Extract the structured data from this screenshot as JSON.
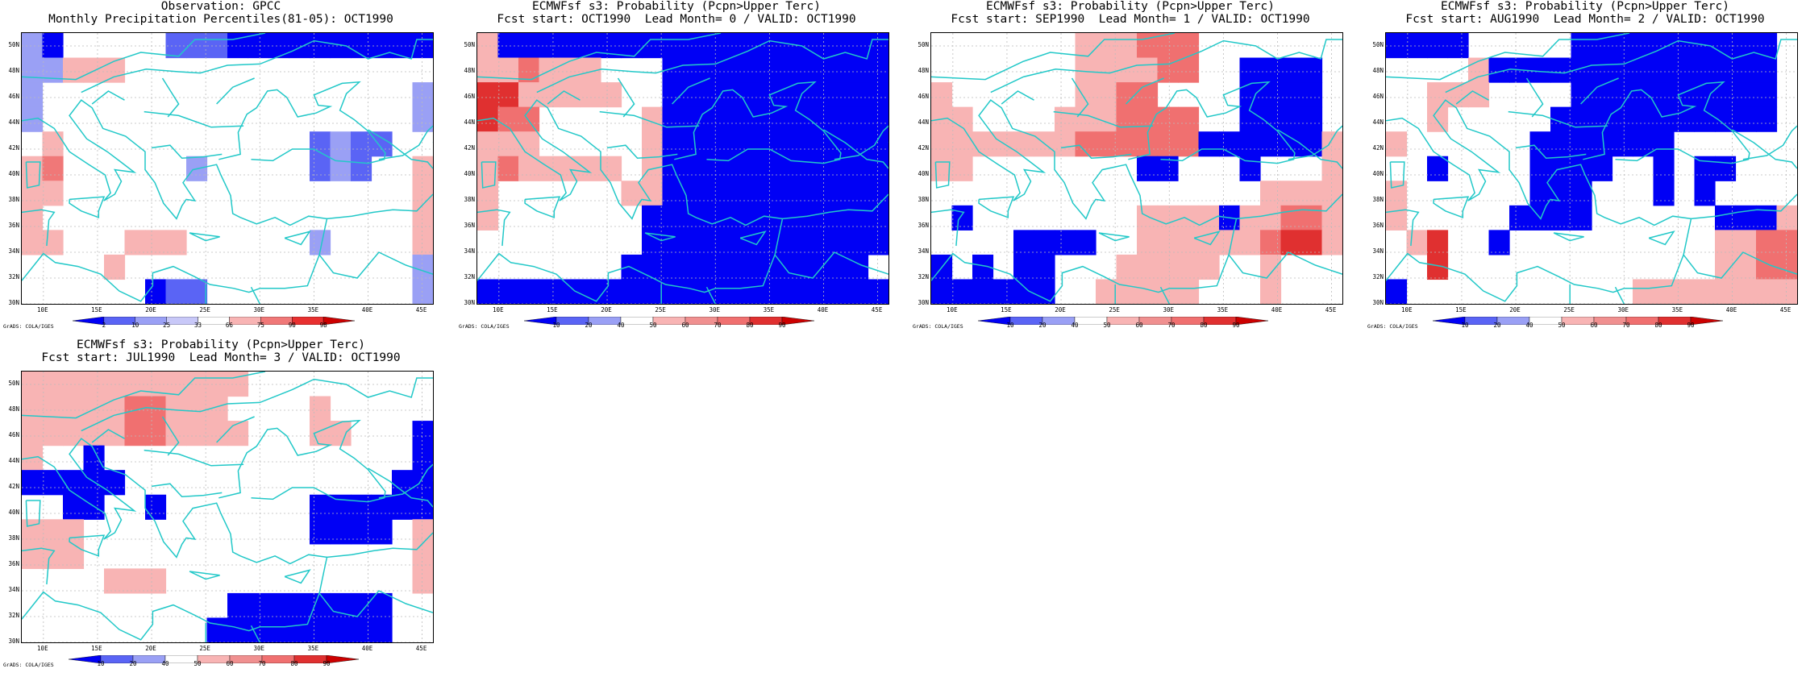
{
  "map_extent": {
    "lon": [
      8,
      46
    ],
    "lat": [
      30,
      51
    ]
  },
  "y_ticks": [
    "30N",
    "32N",
    "34N",
    "36N",
    "38N",
    "40N",
    "42N",
    "44N",
    "46N",
    "48N",
    "50N"
  ],
  "x_ticks": [
    "10E",
    "15E",
    "20E",
    "25E",
    "30E",
    "35E",
    "40E",
    "45E"
  ],
  "credit": "GrADS: COLA/IGES",
  "colors": {
    "coast": "#22c8c8",
    "grid": "#bbbbbb",
    "scale_obs": [
      "#0000f5",
      "#5a64f5",
      "#9aa0f5",
      "#c8c8f8",
      "#ffffff",
      "#f8b4b4",
      "#f07878",
      "#e83030",
      "#cc0000"
    ],
    "scale_fcst": [
      "#0000f5",
      "#5a64f5",
      "#9aa0f5",
      "#ffffff",
      "#f8b4b4",
      "#f09090",
      "#f07070",
      "#e03030",
      "#cc0000"
    ]
  },
  "panels": [
    {
      "title1": "Observation: GPCC",
      "title2": "Monthly Precipitation Percentiles(81-05): OCT1990",
      "colorbar": [
        "2",
        "10",
        "25",
        "33",
        "66",
        "75",
        "90",
        "98"
      ],
      "cells": [
        [
          3,
          1,
          0,
          0,
          0,
          0,
          0,
          2,
          2,
          2,
          1,
          1,
          1,
          1,
          1,
          1,
          1,
          1,
          1,
          1
        ],
        [
          3,
          3,
          4,
          4,
          4,
          0,
          0,
          0,
          0,
          0,
          0,
          0,
          0,
          0,
          0,
          0,
          0,
          0,
          0,
          0
        ],
        [
          3,
          0,
          0,
          0,
          0,
          0,
          0,
          0,
          0,
          0,
          0,
          0,
          0,
          0,
          0,
          0,
          0,
          0,
          0,
          3
        ],
        [
          3,
          0,
          0,
          0,
          0,
          0,
          0,
          0,
          0,
          0,
          0,
          0,
          0,
          0,
          0,
          0,
          0,
          0,
          0,
          3
        ],
        [
          0,
          4,
          0,
          0,
          0,
          0,
          0,
          0,
          0,
          0,
          0,
          0,
          0,
          0,
          2,
          3,
          2,
          2,
          0,
          0
        ],
        [
          4,
          5,
          0,
          0,
          0,
          0,
          0,
          0,
          3,
          0,
          0,
          0,
          0,
          0,
          2,
          3,
          2,
          0,
          0,
          4
        ],
        [
          4,
          4,
          0,
          0,
          0,
          0,
          0,
          0,
          0,
          0,
          0,
          0,
          0,
          0,
          0,
          0,
          0,
          0,
          0,
          4
        ],
        [
          4,
          0,
          0,
          0,
          0,
          0,
          0,
          0,
          0,
          0,
          0,
          0,
          0,
          0,
          0,
          0,
          0,
          0,
          0,
          4
        ],
        [
          4,
          4,
          0,
          0,
          0,
          4,
          4,
          4,
          0,
          0,
          0,
          0,
          0,
          0,
          3,
          0,
          0,
          0,
          0,
          4
        ],
        [
          0,
          0,
          0,
          0,
          4,
          0,
          0,
          0,
          0,
          0,
          0,
          0,
          0,
          0,
          0,
          0,
          0,
          0,
          0,
          3
        ],
        [
          0,
          0,
          0,
          0,
          0,
          0,
          1,
          2,
          2,
          0,
          0,
          0,
          0,
          0,
          0,
          0,
          0,
          0,
          0,
          3
        ]
      ]
    },
    {
      "title1": "ECMWFsf s3: Probability (Pcpn>Upper Terc)",
      "title2": "Fcst start: OCT1990  Lead Month= 0 / VALID: OCT1990",
      "colorbar": [
        "10",
        "20",
        "40",
        "50",
        "60",
        "70",
        "80",
        "90"
      ],
      "cells": [
        [
          4,
          1,
          1,
          1,
          1,
          1,
          1,
          1,
          1,
          1,
          1,
          1,
          1,
          1,
          1,
          1,
          1,
          1,
          1,
          1
        ],
        [
          4,
          4,
          5,
          4,
          4,
          4,
          0,
          0,
          0,
          1,
          1,
          1,
          1,
          1,
          1,
          1,
          1,
          1,
          1,
          1
        ],
        [
          6,
          6,
          4,
          4,
          4,
          4,
          4,
          0,
          0,
          1,
          1,
          1,
          1,
          1,
          1,
          1,
          1,
          1,
          1,
          1
        ],
        [
          6,
          5,
          5,
          0,
          0,
          0,
          0,
          0,
          4,
          1,
          1,
          1,
          1,
          1,
          1,
          1,
          1,
          1,
          1,
          1
        ],
        [
          4,
          4,
          4,
          0,
          0,
          0,
          0,
          0,
          4,
          1,
          1,
          1,
          1,
          1,
          1,
          1,
          1,
          1,
          1,
          1
        ],
        [
          4,
          5,
          4,
          4,
          4,
          4,
          4,
          0,
          4,
          1,
          1,
          1,
          1,
          1,
          1,
          1,
          1,
          1,
          1,
          1
        ],
        [
          4,
          0,
          0,
          0,
          0,
          0,
          0,
          4,
          4,
          1,
          1,
          1,
          1,
          1,
          1,
          1,
          1,
          1,
          1,
          1
        ],
        [
          4,
          0,
          0,
          0,
          0,
          0,
          0,
          0,
          1,
          1,
          1,
          1,
          1,
          1,
          1,
          1,
          1,
          1,
          1,
          1
        ],
        [
          0,
          0,
          0,
          0,
          0,
          0,
          0,
          0,
          1,
          1,
          1,
          1,
          1,
          1,
          1,
          1,
          1,
          1,
          1,
          1
        ],
        [
          0,
          0,
          0,
          0,
          0,
          0,
          0,
          1,
          1,
          1,
          1,
          1,
          1,
          1,
          1,
          1,
          1,
          1,
          1,
          0
        ],
        [
          1,
          1,
          1,
          1,
          1,
          1,
          1,
          1,
          1,
          1,
          1,
          1,
          1,
          1,
          1,
          1,
          1,
          1,
          1,
          1
        ]
      ]
    },
    {
      "title1": "ECMWFsf s3: Probability (Pcpn>Upper Terc)",
      "title2": "Fcst start: SEP1990  Lead Month= 1 / VALID: OCT1990",
      "colorbar": [
        "10",
        "20",
        "40",
        "50",
        "60",
        "70",
        "80",
        "90"
      ],
      "cells": [
        [
          0,
          0,
          0,
          0,
          0,
          0,
          0,
          4,
          4,
          4,
          5,
          5,
          5,
          0,
          0,
          0,
          0,
          0,
          0,
          0
        ],
        [
          0,
          0,
          0,
          0,
          0,
          0,
          0,
          4,
          4,
          4,
          4,
          5,
          5,
          0,
          0,
          1,
          1,
          1,
          1,
          0
        ],
        [
          4,
          0,
          0,
          0,
          0,
          0,
          0,
          4,
          4,
          5,
          5,
          0,
          0,
          0,
          0,
          1,
          1,
          1,
          1,
          0
        ],
        [
          4,
          4,
          0,
          0,
          0,
          0,
          4,
          4,
          4,
          5,
          5,
          5,
          5,
          0,
          0,
          1,
          1,
          1,
          1,
          0
        ],
        [
          4,
          4,
          4,
          4,
          4,
          4,
          4,
          5,
          5,
          5,
          5,
          5,
          5,
          1,
          1,
          1,
          1,
          1,
          1,
          4
        ],
        [
          4,
          4,
          0,
          0,
          0,
          0,
          0,
          0,
          0,
          0,
          1,
          1,
          0,
          0,
          0,
          1,
          0,
          0,
          0,
          4
        ],
        [
          0,
          0,
          0,
          0,
          0,
          0,
          0,
          0,
          0,
          0,
          0,
          0,
          0,
          0,
          0,
          0,
          4,
          4,
          4,
          4
        ],
        [
          0,
          1,
          0,
          0,
          0,
          0,
          0,
          0,
          0,
          0,
          4,
          4,
          4,
          4,
          1,
          4,
          4,
          5,
          5,
          4
        ],
        [
          0,
          0,
          0,
          0,
          1,
          1,
          1,
          1,
          0,
          0,
          4,
          4,
          4,
          4,
          4,
          4,
          5,
          6,
          6,
          4
        ],
        [
          1,
          0,
          1,
          0,
          1,
          1,
          0,
          0,
          0,
          4,
          4,
          4,
          4,
          4,
          0,
          0,
          4,
          0,
          0,
          0
        ],
        [
          1,
          1,
          1,
          1,
          1,
          1,
          0,
          0,
          4,
          4,
          4,
          4,
          4,
          0,
          0,
          0,
          4,
          0,
          0,
          0
        ]
      ]
    },
    {
      "title1": "ECMWFsf s3: Probability (Pcpn>Upper Terc)",
      "title2": "Fcst start: AUG1990  Lead Month= 2 / VALID: OCT1990",
      "colorbar": [
        "10",
        "20",
        "40",
        "50",
        "60",
        "70",
        "80",
        "90"
      ],
      "cells": [
        [
          1,
          1,
          1,
          1,
          0,
          0,
          0,
          0,
          0,
          1,
          1,
          1,
          1,
          1,
          1,
          1,
          1,
          1,
          1,
          0
        ],
        [
          0,
          0,
          0,
          0,
          4,
          1,
          1,
          1,
          1,
          1,
          1,
          1,
          1,
          1,
          1,
          1,
          1,
          1,
          1,
          0
        ],
        [
          0,
          0,
          4,
          4,
          4,
          0,
          0,
          0,
          0,
          1,
          1,
          1,
          1,
          1,
          1,
          1,
          1,
          1,
          1,
          0
        ],
        [
          0,
          0,
          4,
          0,
          0,
          0,
          0,
          0,
          1,
          1,
          1,
          1,
          1,
          1,
          1,
          1,
          1,
          1,
          1,
          0
        ],
        [
          4,
          0,
          0,
          0,
          0,
          0,
          0,
          1,
          1,
          1,
          1,
          1,
          1,
          1,
          0,
          0,
          0,
          0,
          0,
          0
        ],
        [
          0,
          0,
          1,
          0,
          0,
          0,
          0,
          1,
          1,
          1,
          1,
          0,
          0,
          1,
          0,
          1,
          1,
          0,
          0,
          0
        ],
        [
          4,
          0,
          0,
          0,
          0,
          0,
          0,
          1,
          1,
          1,
          0,
          0,
          0,
          1,
          0,
          1,
          0,
          0,
          0,
          0
        ],
        [
          4,
          0,
          0,
          0,
          0,
          0,
          1,
          1,
          1,
          1,
          0,
          0,
          0,
          0,
          0,
          0,
          1,
          1,
          1,
          4
        ],
        [
          0,
          4,
          6,
          0,
          0,
          1,
          0,
          0,
          0,
          0,
          0,
          0,
          0,
          0,
          0,
          0,
          4,
          4,
          5,
          5
        ],
        [
          0,
          0,
          6,
          0,
          0,
          0,
          0,
          0,
          0,
          0,
          0,
          0,
          0,
          0,
          0,
          0,
          4,
          4,
          5,
          5
        ],
        [
          1,
          0,
          0,
          0,
          0,
          0,
          0,
          0,
          0,
          0,
          0,
          0,
          4,
          4,
          4,
          4,
          4,
          4,
          4,
          4
        ]
      ]
    },
    {
      "title1": "ECMWFsf s3: Probability (Pcpn>Upper Terc)",
      "title2": "Fcst start: JUL1990  Lead Month= 3 / VALID: OCT1990",
      "colorbar": [
        "10",
        "20",
        "40",
        "50",
        "60",
        "70",
        "80",
        "90"
      ],
      "cells": [
        [
          4,
          4,
          4,
          4,
          4,
          4,
          4,
          4,
          4,
          4,
          4,
          0,
          0,
          0,
          0,
          0,
          0,
          0,
          0,
          0
        ],
        [
          4,
          4,
          4,
          4,
          4,
          5,
          5,
          4,
          4,
          4,
          0,
          0,
          0,
          0,
          4,
          0,
          0,
          0,
          0,
          0
        ],
        [
          4,
          4,
          4,
          4,
          4,
          5,
          5,
          4,
          4,
          4,
          4,
          0,
          0,
          0,
          4,
          4,
          0,
          0,
          0,
          1
        ],
        [
          4,
          0,
          0,
          1,
          0,
          0,
          0,
          0,
          0,
          0,
          0,
          0,
          0,
          0,
          0,
          0,
          0,
          0,
          0,
          1
        ],
        [
          1,
          1,
          1,
          1,
          1,
          0,
          0,
          0,
          0,
          0,
          0,
          0,
          0,
          0,
          0,
          0,
          0,
          0,
          1,
          1
        ],
        [
          0,
          0,
          1,
          1,
          0,
          0,
          1,
          0,
          0,
          0,
          0,
          0,
          0,
          0,
          1,
          1,
          1,
          1,
          1,
          1
        ],
        [
          4,
          4,
          4,
          0,
          0,
          0,
          0,
          0,
          0,
          0,
          0,
          0,
          0,
          0,
          1,
          1,
          1,
          1,
          0,
          4
        ],
        [
          4,
          4,
          4,
          0,
          0,
          0,
          0,
          0,
          0,
          0,
          0,
          0,
          0,
          0,
          0,
          0,
          0,
          0,
          0,
          4
        ],
        [
          0,
          0,
          0,
          0,
          4,
          4,
          4,
          0,
          0,
          0,
          0,
          0,
          0,
          0,
          0,
          0,
          0,
          0,
          0,
          4
        ],
        [
          0,
          0,
          0,
          0,
          0,
          0,
          0,
          0,
          0,
          0,
          1,
          1,
          1,
          1,
          1,
          1,
          1,
          1,
          0,
          0
        ],
        [
          0,
          0,
          0,
          0,
          0,
          0,
          0,
          0,
          0,
          1,
          1,
          1,
          1,
          1,
          1,
          1,
          1,
          1,
          0,
          0
        ]
      ]
    }
  ]
}
